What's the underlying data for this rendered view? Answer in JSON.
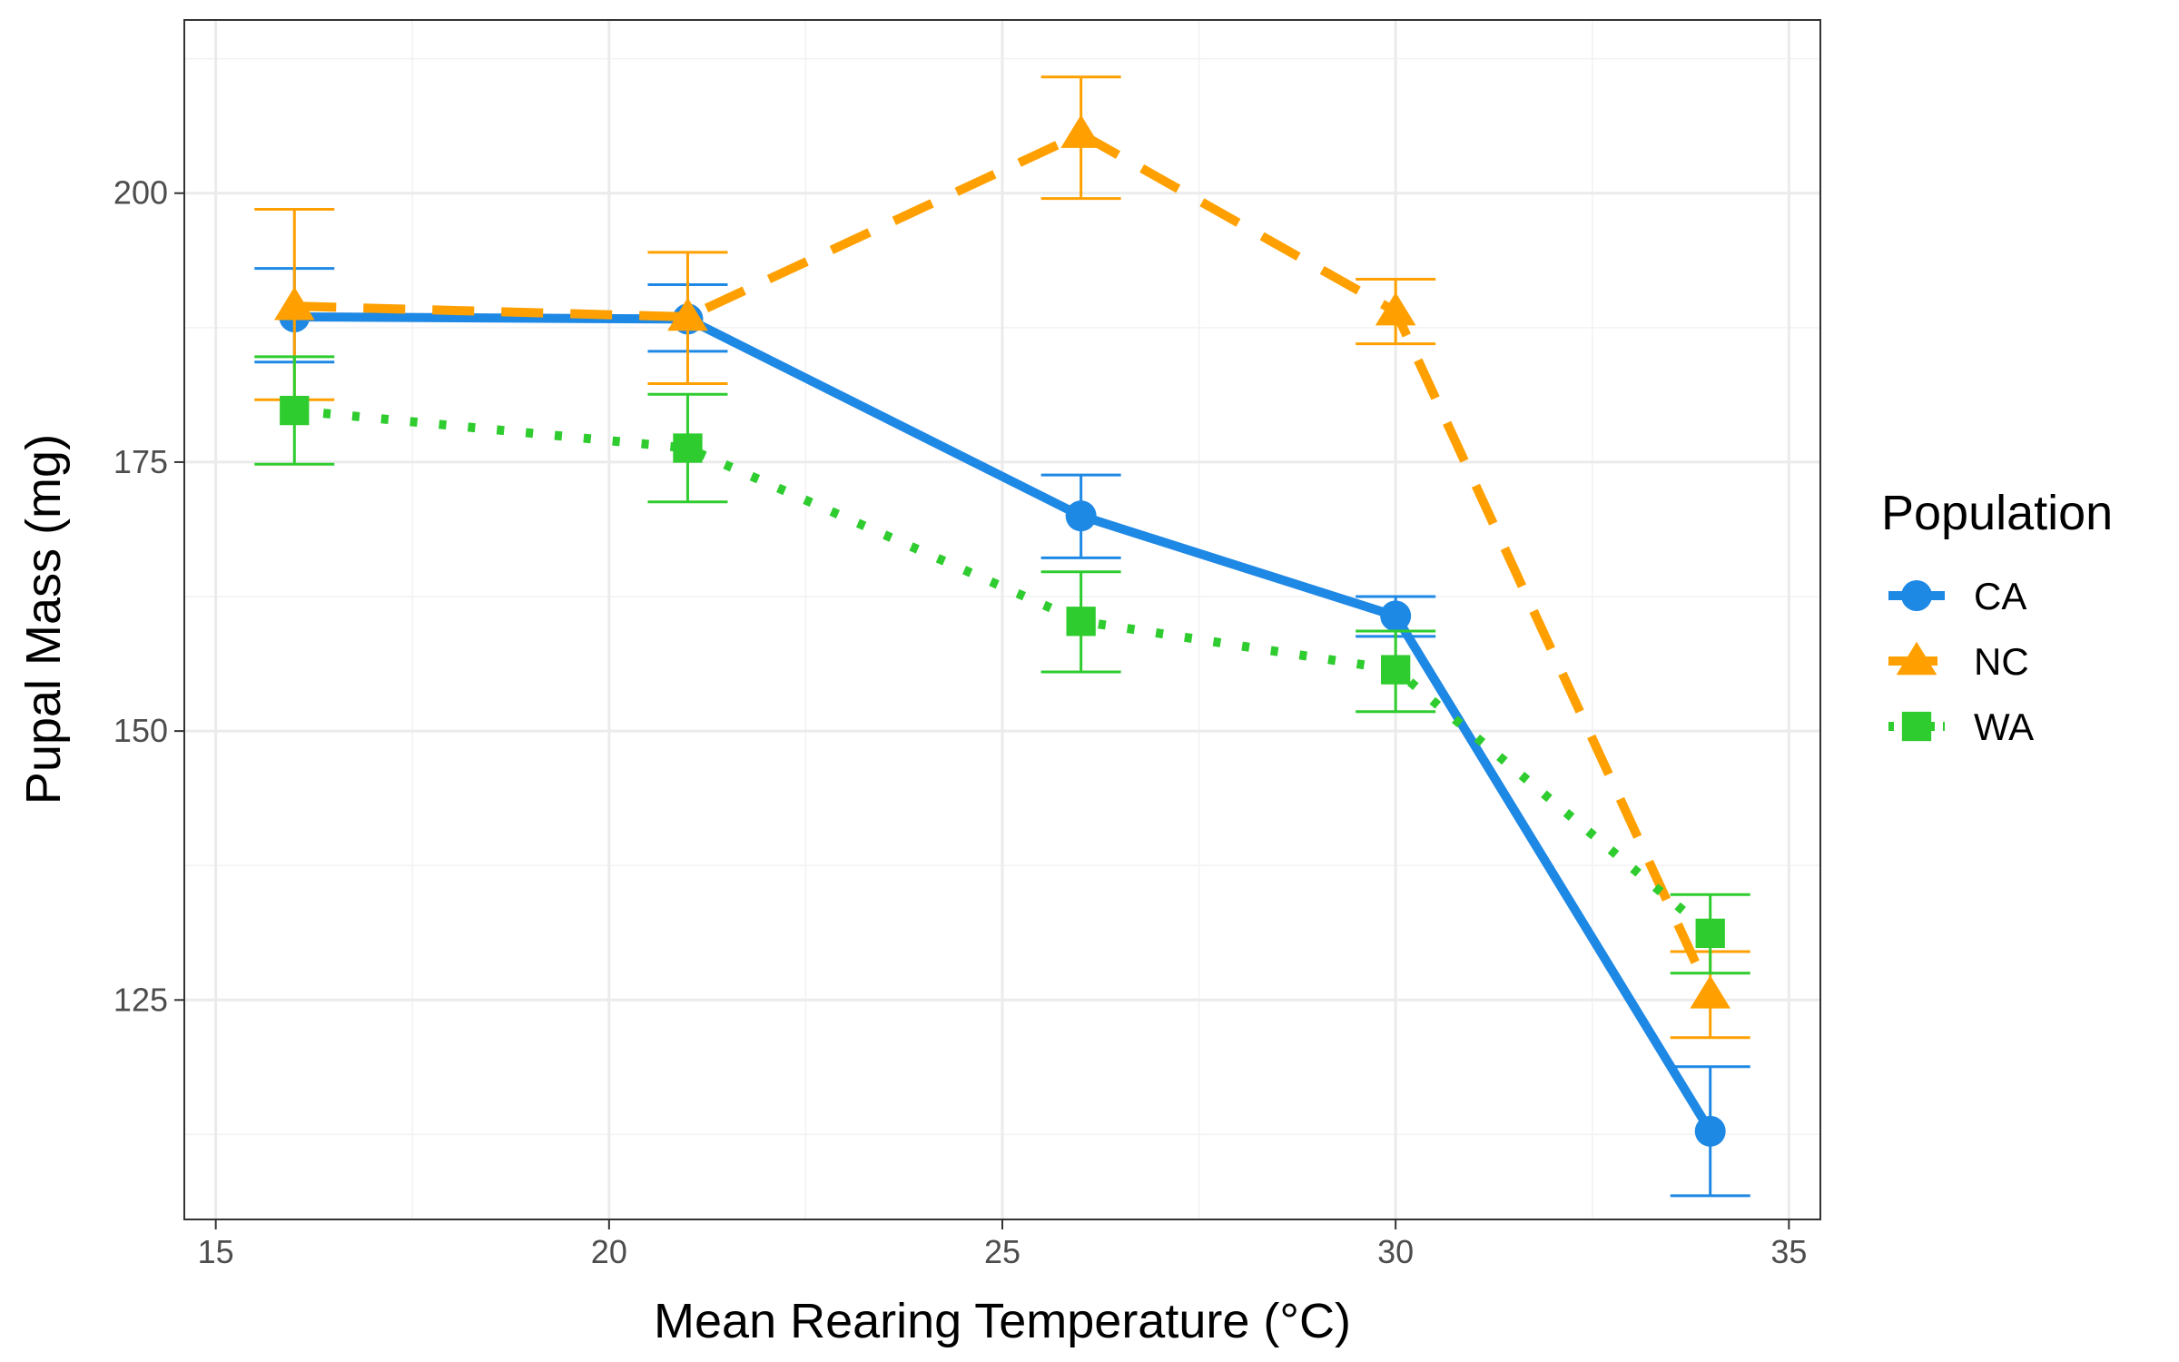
{
  "chart_data": {
    "type": "line",
    "xlabel": "Mean Rearing Temperature (°C)",
    "ylabel": "Pupal Mass (mg)",
    "xlim": [
      14.6,
      35.4
    ],
    "ylim": [
      104.6,
      216.1
    ],
    "xticks": [
      15,
      20,
      25,
      30,
      35
    ],
    "yticks": [
      125,
      150,
      175,
      200
    ],
    "grid": true,
    "legend_title": "Population",
    "legend_position": "right",
    "series": [
      {
        "name": "CA",
        "color": "#1e88e5",
        "marker": "circle",
        "line_style": "solid",
        "x": [
          16,
          21,
          26,
          30,
          34
        ],
        "y": [
          188.5,
          188.3,
          170.0,
          160.7,
          112.8
        ],
        "err_low": [
          184.3,
          185.3,
          166.1,
          158.8,
          106.8
        ],
        "err_high": [
          193.0,
          191.5,
          173.8,
          162.5,
          118.8
        ]
      },
      {
        "name": "NC",
        "color": "#ffa000",
        "marker": "triangle",
        "line_style": "dashed",
        "x": [
          16,
          21,
          26,
          30,
          34
        ],
        "y": [
          189.5,
          188.5,
          205.5,
          189.0,
          125.5
        ],
        "err_low": [
          180.8,
          182.3,
          199.5,
          186.0,
          121.5
        ],
        "err_high": [
          198.5,
          194.5,
          210.8,
          192.0,
          129.5
        ]
      },
      {
        "name": "WA",
        "color": "#2ecc2e",
        "marker": "square",
        "line_style": "dotted",
        "x": [
          16,
          21,
          26,
          30,
          34
        ],
        "y": [
          179.8,
          176.3,
          160.2,
          155.7,
          131.2
        ],
        "err_low": [
          174.8,
          171.3,
          155.5,
          151.8,
          127.5
        ],
        "err_high": [
          184.8,
          181.3,
          164.8,
          159.3,
          134.8
        ]
      }
    ]
  }
}
